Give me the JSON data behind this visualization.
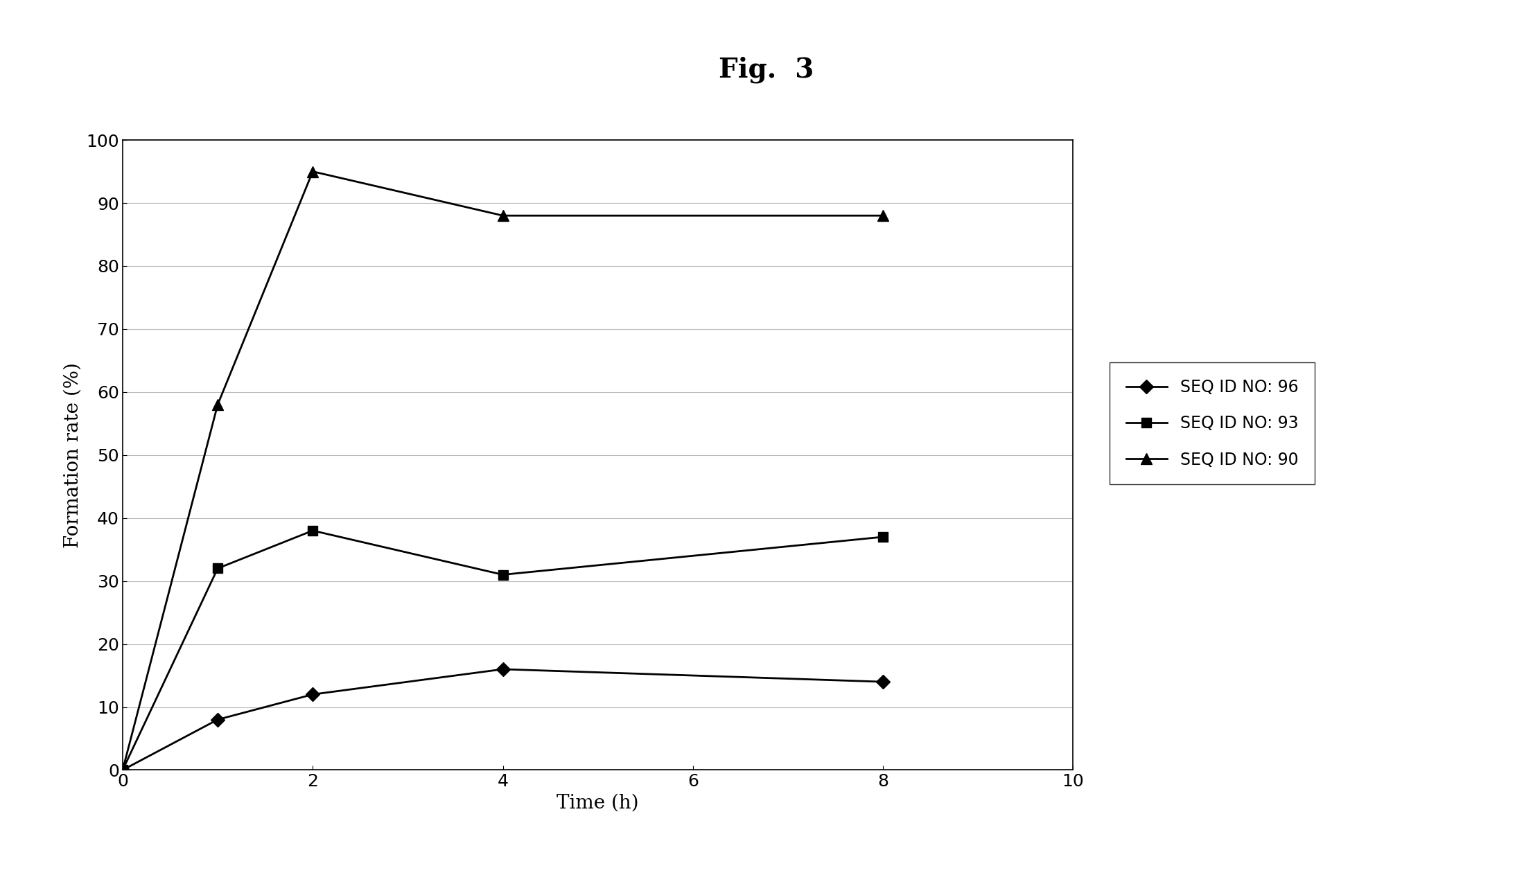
{
  "title": "Fig.  3",
  "xlabel": "Time (h)",
  "ylabel": "Formation rate (%)",
  "xlim": [
    0,
    10
  ],
  "ylim": [
    0,
    100
  ],
  "xticks": [
    0,
    2,
    4,
    6,
    8,
    10
  ],
  "yticks": [
    0,
    10,
    20,
    30,
    40,
    50,
    60,
    70,
    80,
    90,
    100
  ],
  "series": [
    {
      "label": "SEQ ID NO: 96",
      "x": [
        0,
        1,
        2,
        4,
        8
      ],
      "y": [
        0,
        8,
        12,
        16,
        14
      ],
      "marker": "D",
      "color": "#000000",
      "linewidth": 2.0,
      "markersize": 10
    },
    {
      "label": "SEQ ID NO: 93",
      "x": [
        0,
        1,
        2,
        4,
        8
      ],
      "y": [
        0,
        32,
        38,
        31,
        37
      ],
      "marker": "s",
      "color": "#000000",
      "linewidth": 2.0,
      "markersize": 10
    },
    {
      "label": "SEQ ID NO: 90",
      "x": [
        0,
        1,
        2,
        4,
        8
      ],
      "y": [
        0,
        58,
        95,
        88,
        88
      ],
      "marker": "^",
      "color": "#000000",
      "linewidth": 2.0,
      "markersize": 11
    }
  ],
  "background_color": "#ffffff",
  "grid_color": "#bbbbbb",
  "title_fontsize": 28,
  "title_fontfamily": "serif",
  "axis_label_fontsize": 20,
  "tick_fontsize": 18,
  "legend_fontsize": 17
}
